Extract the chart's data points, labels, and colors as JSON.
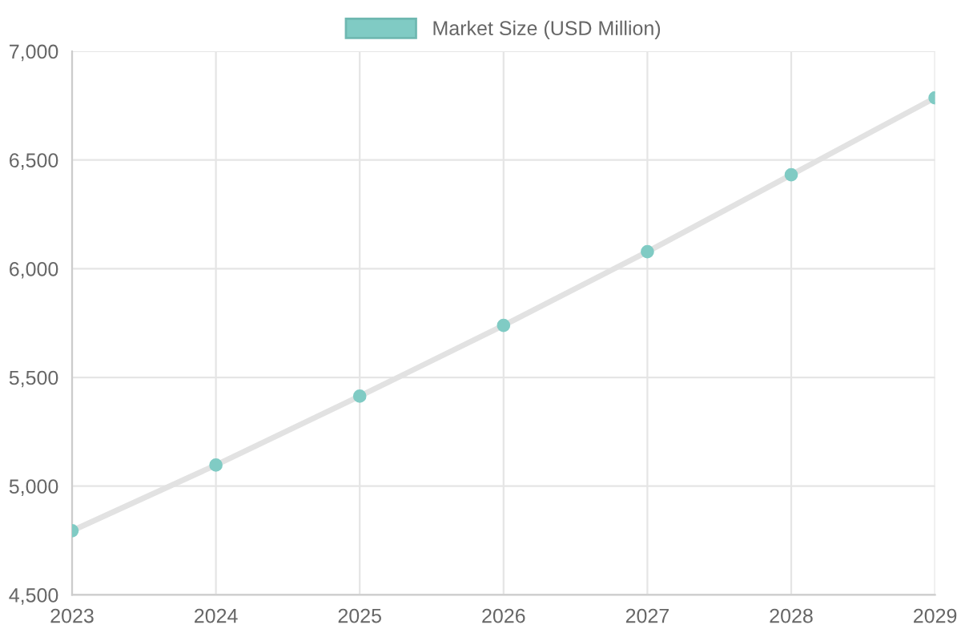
{
  "chart_data": {
    "type": "line",
    "categories": [
      "2023",
      "2024",
      "2025",
      "2026",
      "2027",
      "2028",
      "2029"
    ],
    "series": [
      {
        "name": "Market Size (USD Million)",
        "color": "#80cbc4",
        "values": [
          4795,
          5097,
          5414,
          5739,
          6078,
          6432,
          6786
        ]
      }
    ],
    "ylim": [
      4500,
      7000
    ],
    "yticks": [
      {
        "value": 4500,
        "label": "4,500"
      },
      {
        "value": 5000,
        "label": "5,000"
      },
      {
        "value": 5500,
        "label": "5,500"
      },
      {
        "value": 6000,
        "label": "6,000"
      },
      {
        "value": 6500,
        "label": "6,500"
      },
      {
        "value": 7000,
        "label": "7,000"
      }
    ],
    "grid": true,
    "legend": "top",
    "marker": "circle",
    "line_style": "solid"
  }
}
